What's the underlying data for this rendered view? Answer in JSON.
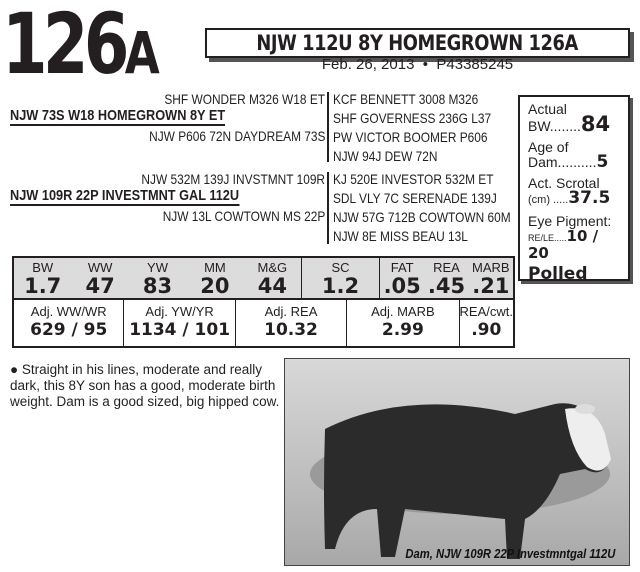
{
  "lot": {
    "number": "126",
    "suffix": "A"
  },
  "title": "NJW 112U 8Y HOMEGROWN 126A",
  "date": "Feb. 26, 2013",
  "bullet": "•",
  "registration": "P43385245",
  "pedigree": {
    "sire": {
      "name": "NJW 73S W18 HOMEGROWN 8Y ET",
      "sire": "SHF WONDER M326 W18 ET",
      "dam": "NJW P606 72N DAYDREAM 73S",
      "great": [
        "KCF BENNETT 3008 M326",
        "SHF GOVERNESS 236G L37",
        "PW VICTOR BOOMER P606",
        "NJW 94J DEW 72N"
      ]
    },
    "dam": {
      "name": "NJW 109R 22P INVESTMNT GAL 112U",
      "sire": "NJW 532M 139J INVSTMNT 109R",
      "dam": "NJW 13L COWTOWN MS 22P",
      "great": [
        "KJ 520E INVESTOR 532M ET",
        "SDL VLY 7C SERENADE 139J",
        "NJW 57G 712B COWTOWN 60M",
        "NJW 8E MISS BEAU 13L"
      ]
    }
  },
  "side": {
    "bw_label1": "Actual",
    "bw_label2": "BW........",
    "bw": "84",
    "age_label1": "Age of",
    "age_label2": "Dam..........",
    "age": "5",
    "sc_label1": "Act. Scrotal",
    "sc_label2": "(cm) .....",
    "sc": "37.5",
    "eye_label1": "Eye Pigment:",
    "eye_label2": "RE/LE.....",
    "eye": "10 / 20",
    "polled": "Polled"
  },
  "epd": [
    [
      {
        "l": "BW",
        "v": "1.7"
      },
      {
        "l": "WW",
        "v": "47"
      },
      {
        "l": "YW",
        "v": "83"
      },
      {
        "l": "MM",
        "v": "20"
      },
      {
        "l": "M&G",
        "v": "44"
      }
    ],
    [
      {
        "l": "SC",
        "v": "1.2"
      }
    ],
    [
      {
        "l": "FAT",
        "v": ".05"
      },
      {
        "l": "REA",
        "v": ".45"
      },
      {
        "l": "MARB",
        "v": ".21"
      }
    ]
  ],
  "adj": [
    {
      "l": "Adj. WW/WR",
      "v": "629 / 95"
    },
    {
      "l": "Adj. YW/YR",
      "v": "1134 / 101"
    },
    {
      "l": "Adj. REA",
      "v": "10.32"
    },
    {
      "l": "Adj. MARB",
      "v": "2.99"
    },
    {
      "l": "REA/cwt.",
      "v": ".90"
    }
  ],
  "description": "Straight in his lines, moderate and really dark, this 8Y son has a good, moderate birth weight. Dam is a good sized, big hipped cow.",
  "photo": {
    "caption": "Dam, NJW 109R 22P Investmntgal 112U"
  }
}
